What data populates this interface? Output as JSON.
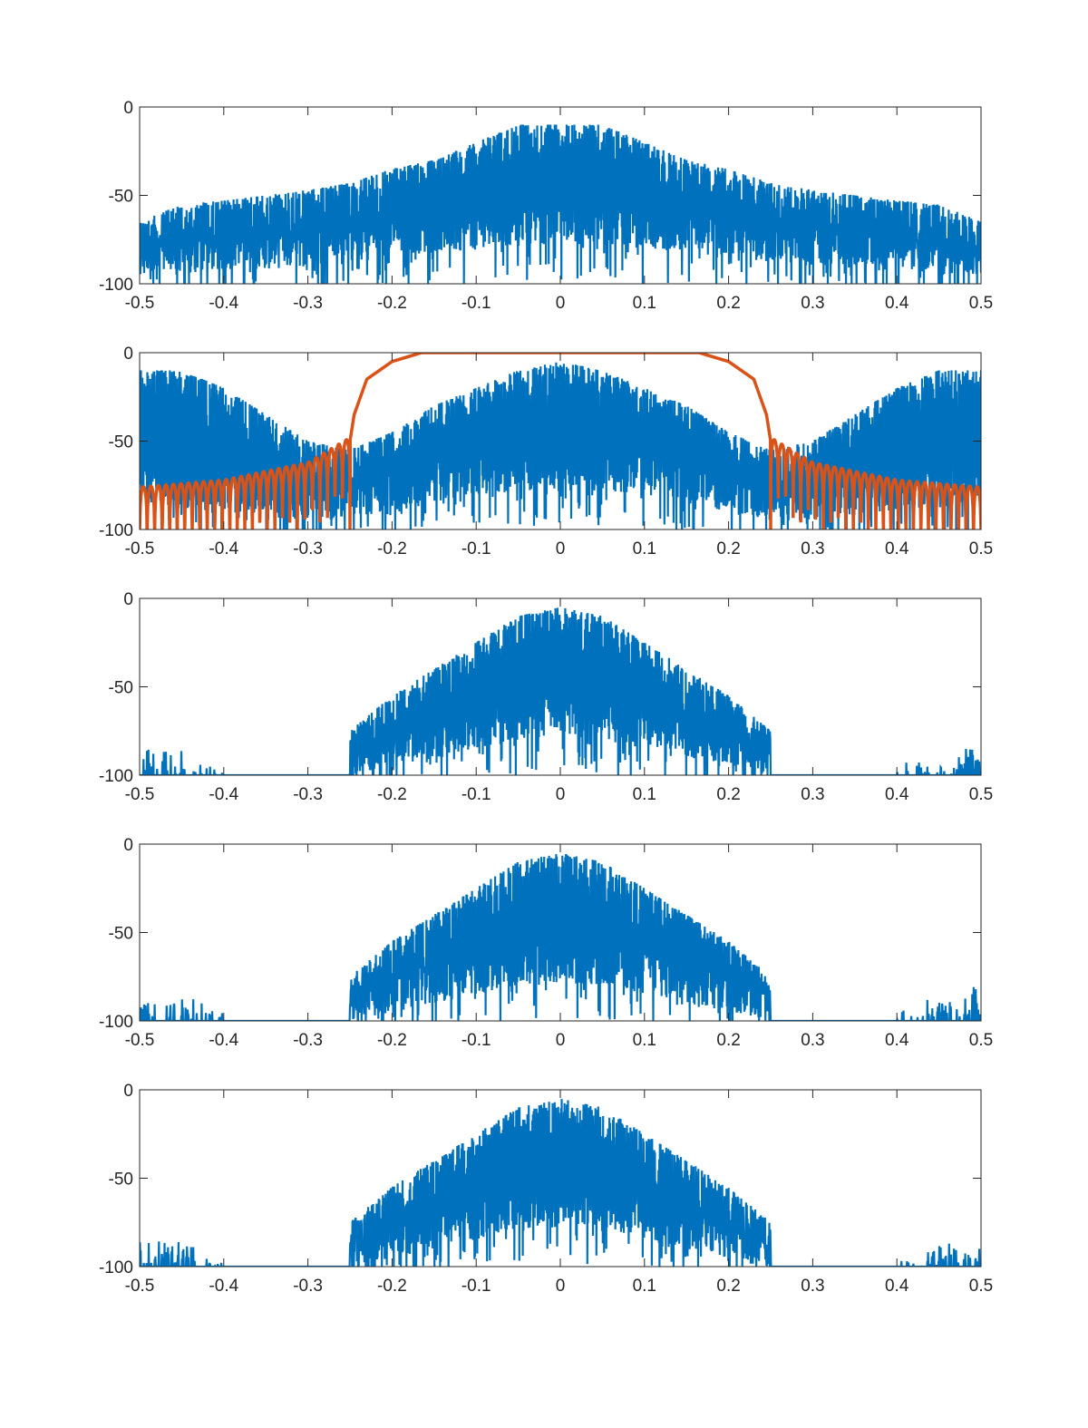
{
  "colors": {
    "series_blue": "#0072BD",
    "filter_orange": "#D95319",
    "axes": "#262626"
  },
  "chart_data": [
    {
      "type": "line",
      "xlim": [
        -0.5,
        0.5
      ],
      "ylim": [
        -100,
        0
      ],
      "xticks": [
        "-0.5",
        "-0.4",
        "-0.3",
        "-0.2",
        "-0.1",
        "0",
        "0.1",
        "0.2",
        "0.3",
        "0.4",
        "0.5"
      ],
      "yticks": [
        "0",
        "-50",
        "-100"
      ],
      "grid": false,
      "series": [
        {
          "color": "#0072BD",
          "kind": "noisy-spectrum",
          "envelope_x": [
            -0.5,
            -0.45,
            -0.4,
            -0.35,
            -0.3,
            -0.25,
            -0.2,
            -0.15,
            -0.1,
            -0.05,
            0,
            0.05,
            0.1,
            0.15,
            0.2,
            0.25,
            0.3,
            0.35,
            0.4,
            0.45,
            0.5
          ],
          "upper": [
            -60,
            -50,
            -48,
            -45,
            -42,
            -38,
            -30,
            -25,
            -15,
            -5,
            -5,
            -5,
            -15,
            -25,
            -30,
            -38,
            -42,
            -45,
            -48,
            -50,
            -60
          ],
          "lower": [
            -95,
            -95,
            -92,
            -92,
            -90,
            -88,
            -85,
            -82,
            -80,
            -78,
            -78,
            -78,
            -80,
            -82,
            -85,
            -88,
            -90,
            -92,
            -92,
            -95,
            -95
          ]
        }
      ]
    },
    {
      "type": "line",
      "xlim": [
        -0.5,
        0.5
      ],
      "ylim": [
        -100,
        0
      ],
      "xticks": [
        "-0.5",
        "-0.4",
        "-0.3",
        "-0.2",
        "-0.1",
        "0",
        "0.1",
        "0.2",
        "0.3",
        "0.4",
        "0.5"
      ],
      "yticks": [
        "0",
        "-50",
        "-100"
      ],
      "grid": false,
      "series": [
        {
          "color": "#0072BD",
          "kind": "noisy-spectrum",
          "envelope_x": [
            -0.5,
            -0.45,
            -0.4,
            -0.35,
            -0.3,
            -0.25,
            -0.2,
            -0.15,
            -0.1,
            -0.05,
            0,
            0.05,
            0.1,
            0.15,
            0.2,
            0.25,
            0.3,
            0.35,
            0.4,
            0.45,
            0.5
          ],
          "upper": [
            -5,
            -5,
            -15,
            -30,
            -45,
            -50,
            -40,
            -25,
            -15,
            -5,
            0,
            -5,
            -15,
            -25,
            -40,
            -50,
            -45,
            -30,
            -15,
            -5,
            -5
          ],
          "lower": [
            -85,
            -88,
            -90,
            -92,
            -95,
            -95,
            -90,
            -85,
            -80,
            -78,
            -78,
            -78,
            -80,
            -85,
            -90,
            -95,
            -95,
            -92,
            -90,
            -88,
            -85
          ]
        },
        {
          "color": "#D95319",
          "kind": "filter-response",
          "passband_edge": 0.165,
          "stopband_edge": 0.25,
          "transition_x": [
            0.165,
            0.2,
            0.23,
            0.245,
            0.25
          ],
          "transition_db": [
            0,
            -5,
            -15,
            -35,
            -50
          ],
          "sidelobe_peak_x": [
            0.25,
            0.3,
            0.4,
            0.5
          ],
          "sidelobe_peak_db": [
            -48,
            -62,
            -72,
            -76
          ],
          "sidelobes_per_side": 28
        }
      ]
    },
    {
      "type": "line",
      "xlim": [
        -0.5,
        0.5
      ],
      "ylim": [
        -100,
        0
      ],
      "xticks": [
        "-0.5",
        "-0.4",
        "-0.3",
        "-0.2",
        "-0.1",
        "0",
        "0.1",
        "0.2",
        "0.3",
        "0.4",
        "0.5"
      ],
      "yticks": [
        "0",
        "-50",
        "-100"
      ],
      "grid": false,
      "series": [
        {
          "color": "#0072BD",
          "kind": "noisy-spectrum",
          "band_edge": 0.25,
          "envelope_x": [
            -0.5,
            -0.45,
            -0.4,
            -0.35,
            -0.3,
            -0.25,
            -0.2,
            -0.15,
            -0.1,
            -0.05,
            0,
            0.05,
            0.1,
            0.15,
            0.2,
            0.25,
            0.3,
            0.35,
            0.4,
            0.45,
            0.5
          ],
          "upper": [
            -80,
            -85,
            -95,
            -100,
            -100,
            -70,
            -50,
            -35,
            -20,
            -5,
            0,
            -5,
            -20,
            -35,
            -50,
            -70,
            -100,
            -100,
            -95,
            -85,
            -80
          ],
          "lower": [
            -100,
            -100,
            -100,
            -100,
            -100,
            -100,
            -95,
            -90,
            -85,
            -80,
            -78,
            -80,
            -85,
            -90,
            -95,
            -100,
            -100,
            -100,
            -100,
            -100,
            -100
          ]
        }
      ]
    },
    {
      "type": "line",
      "xlim": [
        -0.5,
        0.5
      ],
      "ylim": [
        -100,
        0
      ],
      "xticks": [
        "-0.5",
        "-0.4",
        "-0.3",
        "-0.2",
        "-0.1",
        "0",
        "0.1",
        "0.2",
        "0.3",
        "0.4",
        "0.5"
      ],
      "yticks": [
        "0",
        "-50",
        "-100"
      ],
      "grid": false,
      "series": [
        {
          "color": "#0072BD",
          "kind": "noisy-spectrum",
          "band_edge": 0.25,
          "envelope_x": [
            -0.5,
            -0.45,
            -0.4,
            -0.35,
            -0.3,
            -0.25,
            -0.2,
            -0.15,
            -0.1,
            -0.05,
            0,
            0.05,
            0.1,
            0.15,
            0.2,
            0.25,
            0.3,
            0.35,
            0.4,
            0.45,
            0.5
          ],
          "upper": [
            -80,
            -85,
            -95,
            -100,
            -100,
            -70,
            -50,
            -35,
            -20,
            -5,
            0,
            -5,
            -20,
            -35,
            -50,
            -70,
            -100,
            -100,
            -95,
            -85,
            -80
          ],
          "lower": [
            -100,
            -100,
            -100,
            -100,
            -100,
            -100,
            -95,
            -90,
            -85,
            -80,
            -78,
            -80,
            -85,
            -90,
            -95,
            -100,
            -100,
            -100,
            -100,
            -100,
            -100
          ]
        }
      ]
    },
    {
      "type": "line",
      "xlim": [
        -0.5,
        0.5
      ],
      "ylim": [
        -100,
        0
      ],
      "xticks": [
        "-0.5",
        "-0.4",
        "-0.3",
        "-0.2",
        "-0.1",
        "0",
        "0.1",
        "0.2",
        "0.3",
        "0.4",
        "0.5"
      ],
      "yticks": [
        "0",
        "-50",
        "-100"
      ],
      "grid": false,
      "series": [
        {
          "color": "#0072BD",
          "kind": "noisy-spectrum",
          "band_edge": 0.25,
          "envelope_x": [
            -0.5,
            -0.45,
            -0.4,
            -0.35,
            -0.3,
            -0.25,
            -0.2,
            -0.15,
            -0.1,
            -0.05,
            0,
            0.05,
            0.1,
            0.15,
            0.2,
            0.25,
            0.3,
            0.35,
            0.4,
            0.45,
            0.5
          ],
          "upper": [
            -80,
            -85,
            -95,
            -100,
            -100,
            -70,
            -50,
            -35,
            -20,
            -5,
            0,
            -5,
            -20,
            -35,
            -50,
            -70,
            -100,
            -100,
            -95,
            -85,
            -80
          ],
          "lower": [
            -100,
            -100,
            -100,
            -100,
            -100,
            -100,
            -95,
            -90,
            -85,
            -80,
            -78,
            -80,
            -85,
            -90,
            -95,
            -100,
            -100,
            -100,
            -100,
            -100,
            -100
          ]
        }
      ]
    }
  ]
}
